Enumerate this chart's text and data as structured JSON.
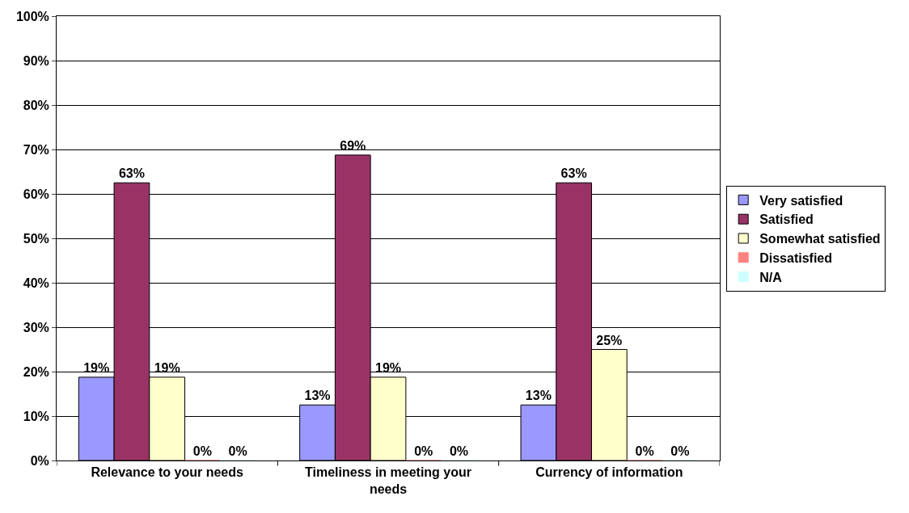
{
  "chart_data": {
    "type": "bar",
    "categories": [
      "Relevance to your needs",
      "Timeliness in meeting your needs",
      "Currency of information"
    ],
    "series": [
      {
        "name": "Very satisfied",
        "color": "#9999ff",
        "values": [
          18.75,
          12.5,
          12.5
        ],
        "value_labels": [
          "19%",
          "13%",
          "13%"
        ]
      },
      {
        "name": "Satisfied",
        "color": "#993366",
        "values": [
          62.5,
          68.75,
          62.5
        ],
        "value_labels": [
          "63%",
          "69%",
          "63%"
        ]
      },
      {
        "name": "Somewhat satisfied",
        "color": "#ffffcc",
        "values": [
          18.75,
          18.75,
          25
        ],
        "value_labels": [
          "19%",
          "19%",
          "25%"
        ]
      },
      {
        "name": "Dissatisfied",
        "color": "#ff8080",
        "values": [
          0,
          0,
          0
        ],
        "value_labels": [
          "0%",
          "0%",
          "0%"
        ]
      },
      {
        "name": "N/A",
        "color": "#ccffff",
        "values": [
          0,
          0,
          0
        ],
        "value_labels": [
          "0%",
          "0%",
          "0%"
        ]
      }
    ],
    "ylim": [
      0,
      100
    ],
    "yticks": [
      {
        "value": 0,
        "label": "0%"
      },
      {
        "value": 10,
        "label": "10%"
      },
      {
        "value": 20,
        "label": "20%"
      },
      {
        "value": 30,
        "label": "30%"
      },
      {
        "value": 40,
        "label": "40%"
      },
      {
        "value": 50,
        "label": "50%"
      },
      {
        "value": 60,
        "label": "60%"
      },
      {
        "value": 70,
        "label": "70%"
      },
      {
        "value": 80,
        "label": "80%"
      },
      {
        "value": 90,
        "label": "90%"
      },
      {
        "value": 100,
        "label": "100%"
      }
    ],
    "grid": "y",
    "legend": "right"
  }
}
